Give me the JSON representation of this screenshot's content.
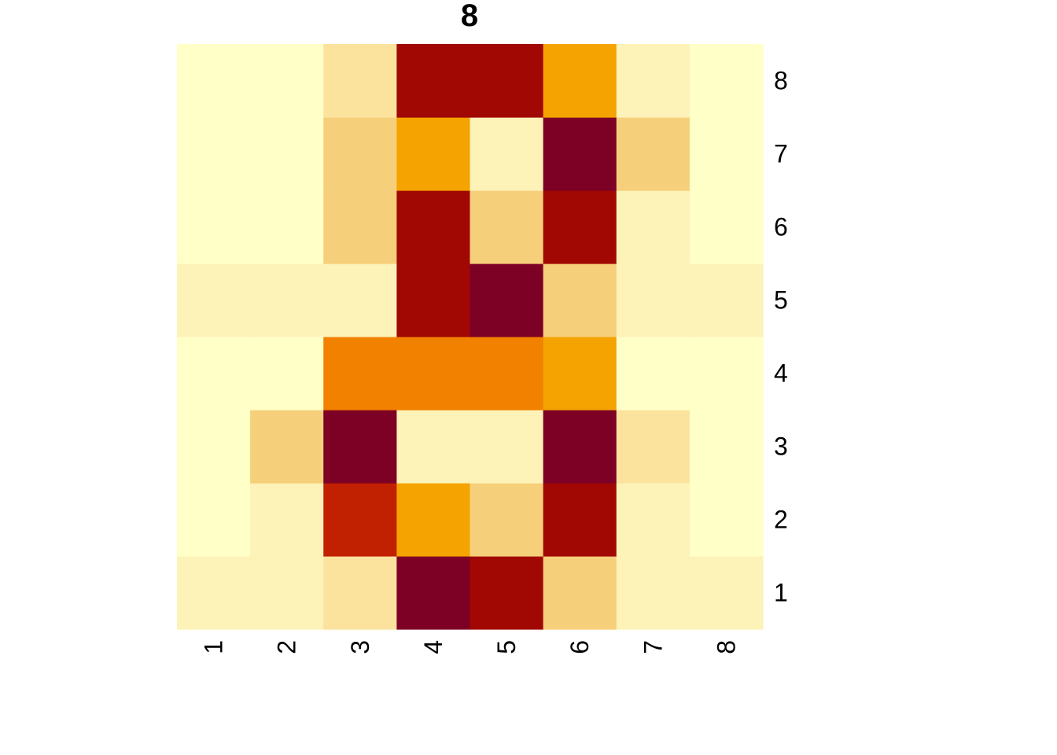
{
  "chart_data": {
    "type": "heatmap",
    "title": "8",
    "x_tick_labels": [
      "1",
      "2",
      "3",
      "4",
      "5",
      "6",
      "7",
      "8"
    ],
    "y_tick_labels": [
      "1",
      "2",
      "3",
      "4",
      "5",
      "6",
      "7",
      "8"
    ],
    "value_range": [
      0,
      16
    ],
    "color_scale": [
      "#FFFFC8",
      "#FDF2B8",
      "#FBE39E",
      "#F6CF7A",
      "#F4A300",
      "#F28100",
      "#EB6300",
      "#E03C00",
      "#C12100",
      "#A10703",
      "#7D0025"
    ],
    "rows_bottom_to_top": [
      [
        1,
        1,
        3,
        16,
        14,
        4,
        1,
        1
      ],
      [
        0,
        1,
        13,
        7,
        4,
        14,
        1,
        0
      ],
      [
        0,
        4,
        16,
        1,
        1,
        16,
        3,
        0
      ],
      [
        0,
        0,
        8,
        8,
        8,
        7,
        0,
        0
      ],
      [
        1,
        1,
        2,
        14,
        16,
        4,
        1,
        1
      ],
      [
        0,
        0,
        4,
        14,
        5,
        14,
        1,
        0
      ],
      [
        0,
        0,
        5,
        7,
        2,
        16,
        5,
        0
      ],
      [
        0,
        0,
        3,
        14,
        14,
        7,
        1,
        0
      ]
    ],
    "grid": false,
    "legend": "none"
  }
}
